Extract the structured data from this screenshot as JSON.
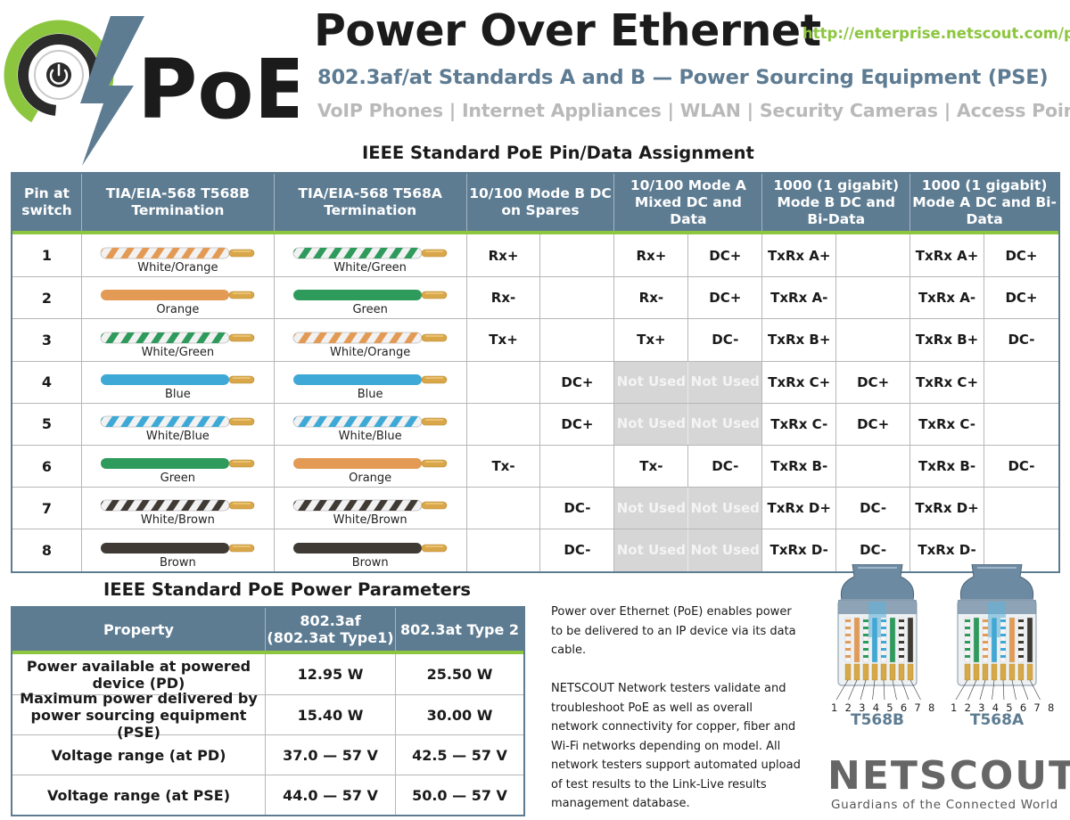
{
  "header": {
    "logo_text": "PoE",
    "title": "Power Over Ethernet",
    "url": "http://enterprise.netscout.com/poe",
    "subtitle": "802.3af/at Standards A and B — Power Sourcing Equipment (PSE)",
    "devices": "VoIP Phones | Internet Appliances | WLAN | Security Cameras | Access Points"
  },
  "colors": {
    "accent_green": "#8cc63f",
    "header_blue": "#5d7c92",
    "not_used_gray": "#d6d6d6",
    "wire_orange": "#e39a55",
    "wire_green": "#2e9a5c",
    "wire_blue": "#3ea9d6",
    "wire_brown": "#3f3a33"
  },
  "pin_table": {
    "title": "IEEE Standard PoE Pin/Data Assignment",
    "headers": {
      "pin": "Pin at switch",
      "t568b": "TIA/EIA-568 T568B Termination",
      "t568a": "TIA/EIA-568 T568A Termination",
      "mode_b_100": "10/100 Mode B DC on Spares",
      "mode_a_100": "10/100 Mode A Mixed DC and Data",
      "gig_mode_b": "1000 (1 gigabit) Mode B DC and Bi-Data",
      "gig_mode_a": "1000 (1 gigabit) Mode A DC and Bi-Data"
    },
    "not_used": "Not Used",
    "rows": [
      {
        "pin": "1",
        "b_label": "White/Orange",
        "a_label": "White/Green",
        "mb1": "Rx+",
        "mb2": "",
        "ma1": "Rx+",
        "ma2": "DC+",
        "gb1": "TxRx A+",
        "gb2": "",
        "ga1": "TxRx A+",
        "ga2": "DC+"
      },
      {
        "pin": "2",
        "b_label": "Orange",
        "a_label": "Green",
        "mb1": "Rx-",
        "mb2": "",
        "ma1": "Rx-",
        "ma2": "DC+",
        "gb1": "TxRx A-",
        "gb2": "",
        "ga1": "TxRx A-",
        "ga2": "DC+"
      },
      {
        "pin": "3",
        "b_label": "White/Green",
        "a_label": "White/Orange",
        "mb1": "Tx+",
        "mb2": "",
        "ma1": "Tx+",
        "ma2": "DC-",
        "gb1": "TxRx B+",
        "gb2": "",
        "ga1": "TxRx B+",
        "ga2": "DC-"
      },
      {
        "pin": "4",
        "b_label": "Blue",
        "a_label": "Blue",
        "mb1": "",
        "mb2": "DC+",
        "ma1": "Not Used",
        "ma2": "Not Used",
        "gb1": "TxRx C+",
        "gb2": "DC+",
        "ga1": "TxRx C+",
        "ga2": ""
      },
      {
        "pin": "5",
        "b_label": "White/Blue",
        "a_label": "White/Blue",
        "mb1": "",
        "mb2": "DC+",
        "ma1": "Not Used",
        "ma2": "Not Used",
        "gb1": "TxRx C-",
        "gb2": "DC+",
        "ga1": "TxRx C-",
        "ga2": ""
      },
      {
        "pin": "6",
        "b_label": "Green",
        "a_label": "Orange",
        "mb1": "Tx-",
        "mb2": "",
        "ma1": "Tx-",
        "ma2": "DC-",
        "gb1": "TxRx B-",
        "gb2": "",
        "ga1": "TxRx B-",
        "ga2": "DC-"
      },
      {
        "pin": "7",
        "b_label": "White/Brown",
        "a_label": "White/Brown",
        "mb1": "",
        "mb2": "DC-",
        "ma1": "Not Used",
        "ma2": "Not Used",
        "gb1": "TxRx D+",
        "gb2": "DC-",
        "ga1": "TxRx D+",
        "ga2": ""
      },
      {
        "pin": "8",
        "b_label": "Brown",
        "a_label": "Brown",
        "mb1": "",
        "mb2": "DC-",
        "ma1": "Not Used",
        "ma2": "Not Used",
        "gb1": "TxRx D-",
        "gb2": "DC-",
        "ga1": "TxRx D-",
        "ga2": ""
      }
    ]
  },
  "power_table": {
    "title": "IEEE Standard PoE Power Parameters",
    "headers": {
      "property": "Property",
      "af": "802.3af (802.3at Type1)",
      "at": "802.3at Type 2"
    },
    "rows": [
      {
        "property": "Power available at powered device (PD)",
        "af": "12.95 W",
        "at": "25.50 W"
      },
      {
        "property": "Maximum power delivered by power sourcing equipment (PSE)",
        "af": "15.40 W",
        "at": "30.00 W"
      },
      {
        "property": "Voltage range (at PD)",
        "af": "37.0 — 57 V",
        "at": "42.5 — 57 V"
      },
      {
        "property": "Voltage range (at PSE)",
        "af": "44.0 — 57 V",
        "at": "50.0 — 57 V"
      }
    ]
  },
  "description": {
    "p1": "Power over Ethernet (PoE) enables power to be delivered to an IP device via its data cable.",
    "p2": "NETSCOUT Network testers validate and troubleshoot PoE as well as overall network connectivity for copper, fiber and Wi-Fi networks depending on model. All network testers support automated upload of test results to the Link-Live results management database."
  },
  "connectors": {
    "pin_numbers": "1 2 3 4 5 6 7 8",
    "b_label": "T568B",
    "a_label": "T568A"
  },
  "netscout": {
    "logo": "NETSCOUT",
    "reg": "®",
    "tagline": "Guardians of the Connected World"
  }
}
